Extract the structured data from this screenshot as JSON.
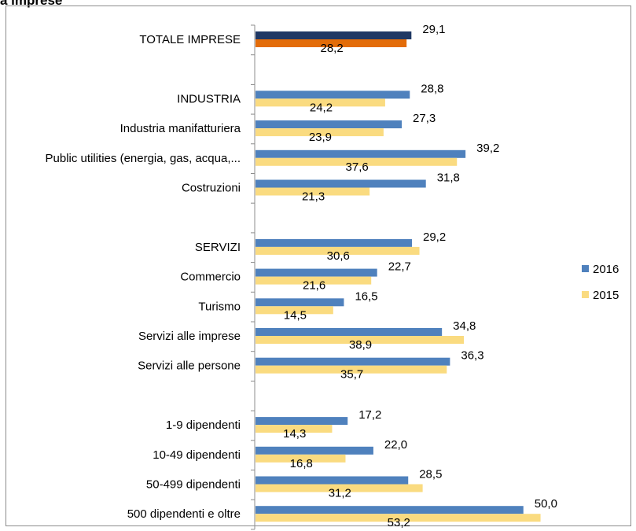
{
  "chart_data": {
    "type": "bar",
    "orientation": "horizontal",
    "title": "a imprese",
    "categories": [
      "TOTALE IMPRESE",
      "",
      "INDUSTRIA",
      "Industria manifatturiera",
      "Public utilities (energia, gas, acqua,...",
      "Costruzioni",
      "",
      "SERVIZI",
      "Commercio",
      "Turismo",
      "Servizi alle imprese",
      "Servizi alle persone",
      "",
      "1-9 dipendenti",
      "10-49 dipendenti",
      "50-499 dipendenti",
      "500 dipendenti e oltre"
    ],
    "series": [
      {
        "name": "2016",
        "color": "#4f81bd",
        "values": [
          29.1,
          null,
          28.8,
          27.3,
          39.2,
          31.8,
          null,
          29.2,
          22.7,
          16.5,
          34.8,
          36.3,
          null,
          17.2,
          22.0,
          28.5,
          50.0
        ],
        "labels": [
          "29,1",
          "",
          "28,8",
          "27,3",
          "39,2",
          "31,8",
          "",
          "29,2",
          "22,7",
          "16,5",
          "34,8",
          "36,3",
          "",
          "17,2",
          "22,0",
          "28,5",
          "50,0"
        ]
      },
      {
        "name": "2015",
        "color": "#fadb80",
        "values": [
          28.2,
          null,
          24.2,
          23.9,
          37.6,
          21.3,
          null,
          30.6,
          21.6,
          14.5,
          38.9,
          35.7,
          null,
          14.3,
          16.8,
          31.2,
          53.2
        ],
        "labels": [
          "28,2",
          "",
          "24,2",
          "23,9",
          "37,6",
          "21,3",
          "",
          "30,6",
          "21,6",
          "14,5",
          "38,9",
          "35,7",
          "",
          "14,3",
          "16,8",
          "31,2",
          "53,2"
        ]
      }
    ],
    "highlight": {
      "category_index": 0,
      "colors": [
        "#1f3864",
        "#e36c09"
      ]
    },
    "xlim": [
      0,
      60
    ],
    "grid": false,
    "legend_position": "right"
  }
}
